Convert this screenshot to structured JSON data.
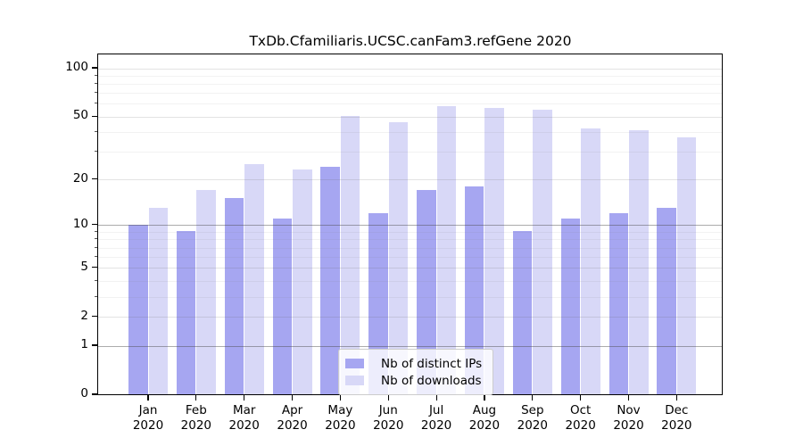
{
  "chart_data": {
    "type": "bar",
    "title": "TxDb.Cfamiliaris.UCSC.canFam3.refGene 2020",
    "categories": [
      "Jan",
      "Feb",
      "Mar",
      "Apr",
      "May",
      "Jun",
      "Jul",
      "Aug",
      "Sep",
      "Oct",
      "Nov",
      "Dec"
    ],
    "category_year": "2020",
    "series": [
      {
        "name": "Nb of distinct IPs",
        "color": "#a6a6f1",
        "values": [
          10,
          9,
          15,
          11,
          24,
          12,
          17,
          18,
          9,
          11,
          12,
          13
        ]
      },
      {
        "name": "Nb of downloads",
        "color": "#d8d8f7",
        "values": [
          13,
          17,
          25,
          23,
          50,
          46,
          58,
          56,
          55,
          42,
          41,
          37
        ]
      }
    ],
    "xlabel": "",
    "ylabel": "",
    "yscale": "log1p",
    "ylim": [
      0,
      123
    ],
    "y_ticks": [
      0,
      1,
      2,
      5,
      10,
      20,
      50,
      100
    ],
    "y_minor_ticks": [
      3,
      4,
      6,
      7,
      8,
      9,
      30,
      40,
      60,
      70,
      80,
      90
    ],
    "grid": true,
    "legend_position": "bottom-center"
  }
}
